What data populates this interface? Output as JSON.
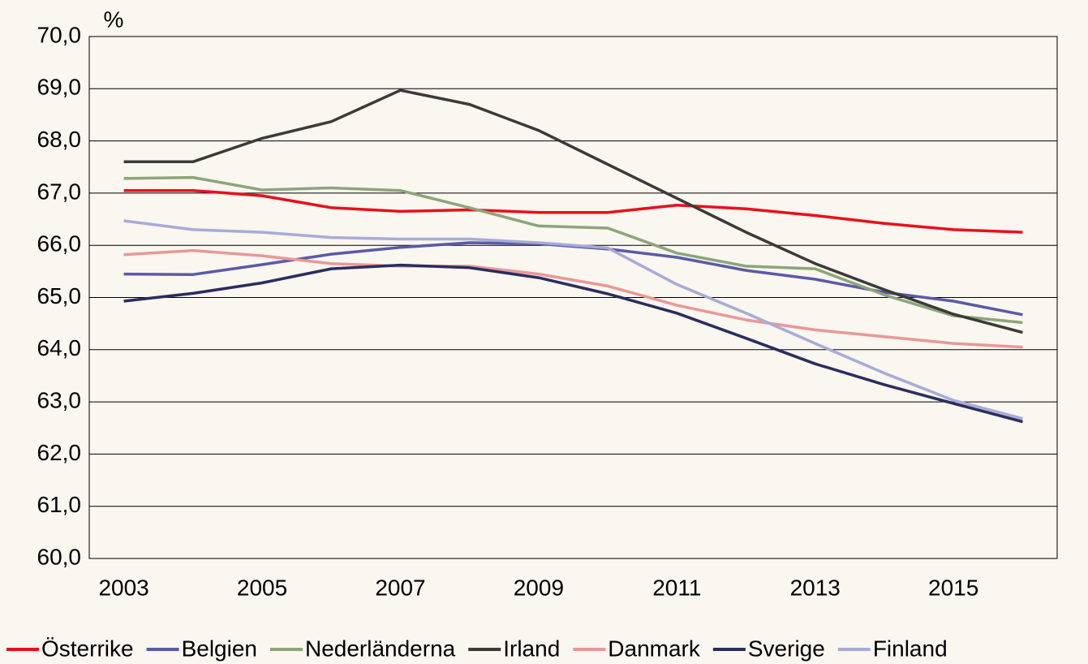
{
  "chart_data": {
    "type": "line",
    "y_label": "%",
    "categories": [
      "2003",
      null,
      "2005",
      null,
      "2007",
      null,
      "2009",
      null,
      "2011",
      null,
      "2013",
      null,
      "2015",
      null
    ],
    "ylim": [
      60,
      70
    ],
    "yticks": [
      {
        "value": 60,
        "label": "60,0"
      },
      {
        "value": 61,
        "label": "61,0"
      },
      {
        "value": 62,
        "label": "62,0"
      },
      {
        "value": 63,
        "label": "63,0"
      },
      {
        "value": 64,
        "label": "64,0"
      },
      {
        "value": 65,
        "label": "65,0"
      },
      {
        "value": 66,
        "label": "66,0"
      },
      {
        "value": 67,
        "label": "67,0"
      },
      {
        "value": 68,
        "label": "68,0"
      },
      {
        "value": 69,
        "label": "69,0"
      },
      {
        "value": 70,
        "label": "70,0"
      }
    ],
    "grid": true,
    "legend": "bottom",
    "series": [
      {
        "name": "Österrike",
        "color": "#e8101a",
        "values": [
          67.05,
          67.05,
          66.95,
          66.72,
          66.65,
          66.68,
          66.63,
          66.63,
          66.77,
          66.7,
          66.57,
          66.42,
          66.3,
          66.25
        ]
      },
      {
        "name": "Belgien",
        "color": "#5a5aa6",
        "values": [
          65.45,
          65.44,
          65.63,
          65.83,
          65.96,
          66.05,
          66.03,
          65.93,
          65.77,
          65.52,
          65.35,
          65.1,
          64.93,
          64.67
        ]
      },
      {
        "name": "Nederländerna",
        "color": "#8ca57a",
        "values": [
          67.28,
          67.3,
          67.06,
          67.1,
          67.05,
          66.72,
          66.37,
          66.33,
          65.85,
          65.6,
          65.55,
          65.05,
          64.65,
          64.52
        ]
      },
      {
        "name": "Irland",
        "color": "#3a3a38",
        "values": [
          67.6,
          67.6,
          68.05,
          68.37,
          68.97,
          68.7,
          68.2,
          67.55,
          66.9,
          66.25,
          65.65,
          65.15,
          64.68,
          64.33
        ]
      },
      {
        "name": "Danmark",
        "color": "#e89898",
        "values": [
          65.82,
          65.9,
          65.8,
          65.65,
          65.6,
          65.6,
          65.45,
          65.22,
          64.85,
          64.57,
          64.38,
          64.25,
          64.12,
          64.05
        ]
      },
      {
        "name": "Sverige",
        "color": "#2a2d5e",
        "values": [
          64.93,
          65.08,
          65.28,
          65.55,
          65.62,
          65.57,
          65.38,
          65.07,
          64.7,
          64.22,
          63.73,
          63.33,
          62.97,
          62.62
        ]
      },
      {
        "name": "Finland",
        "color": "#a7abd6",
        "values": [
          66.47,
          66.3,
          66.25,
          66.15,
          66.12,
          66.12,
          66.05,
          65.95,
          65.25,
          64.7,
          64.12,
          63.55,
          63.03,
          62.68
        ]
      }
    ]
  }
}
